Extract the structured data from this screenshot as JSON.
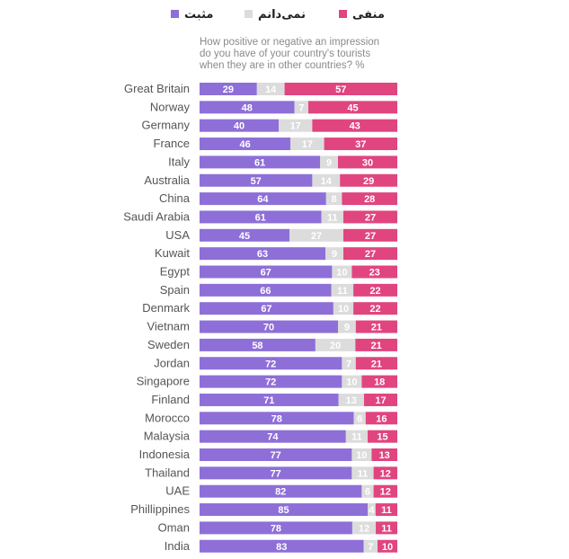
{
  "legend": [
    {
      "label": "مثبت",
      "color": "#8e6fd8"
    },
    {
      "label": "نمی‌دانم",
      "color": "#dcdcdc"
    },
    {
      "label": "منفی",
      "color": "#e0457f"
    }
  ],
  "chart_data": {
    "type": "bar",
    "orientation": "horizontal",
    "stacked": true,
    "subtitle": [
      "How positive or negative an impression",
      "do you have of your country's tourists",
      "when they are in other countries? %"
    ],
    "categories": [
      "Great Britain",
      "Norway",
      "Germany",
      "France",
      "Italy",
      "Australia",
      "China",
      "Saudi Arabia",
      "USA",
      "Kuwait",
      "Egypt",
      "Spain",
      "Denmark",
      "Vietnam",
      "Sweden",
      "Jordan",
      "Singapore",
      "Finland",
      "Morocco",
      "Malaysia",
      "Indonesia",
      "Thailand",
      "UAE",
      "Phillippines",
      "Oman",
      "India"
    ],
    "series": [
      {
        "name": "مثبت",
        "color": "#8e6fd8",
        "values": [
          29,
          48,
          40,
          46,
          61,
          57,
          64,
          61,
          45,
          63,
          67,
          66,
          67,
          70,
          58,
          72,
          72,
          71,
          78,
          74,
          77,
          77,
          82,
          85,
          78,
          83
        ]
      },
      {
        "name": "نمی‌دانم",
        "color": "#dcdcdc",
        "values": [
          14,
          7,
          17,
          17,
          9,
          14,
          8,
          11,
          27,
          9,
          10,
          11,
          10,
          9,
          20,
          7,
          10,
          13,
          6,
          11,
          10,
          11,
          6,
          4,
          12,
          7
        ]
      },
      {
        "name": "منفی",
        "color": "#e0457f",
        "values": [
          57,
          45,
          43,
          37,
          30,
          29,
          28,
          27,
          27,
          27,
          23,
          22,
          22,
          21,
          21,
          21,
          18,
          17,
          16,
          15,
          13,
          12,
          12,
          11,
          11,
          10
        ]
      }
    ],
    "xlim": [
      0,
      100
    ],
    "grid": false,
    "legend_position": "top"
  }
}
